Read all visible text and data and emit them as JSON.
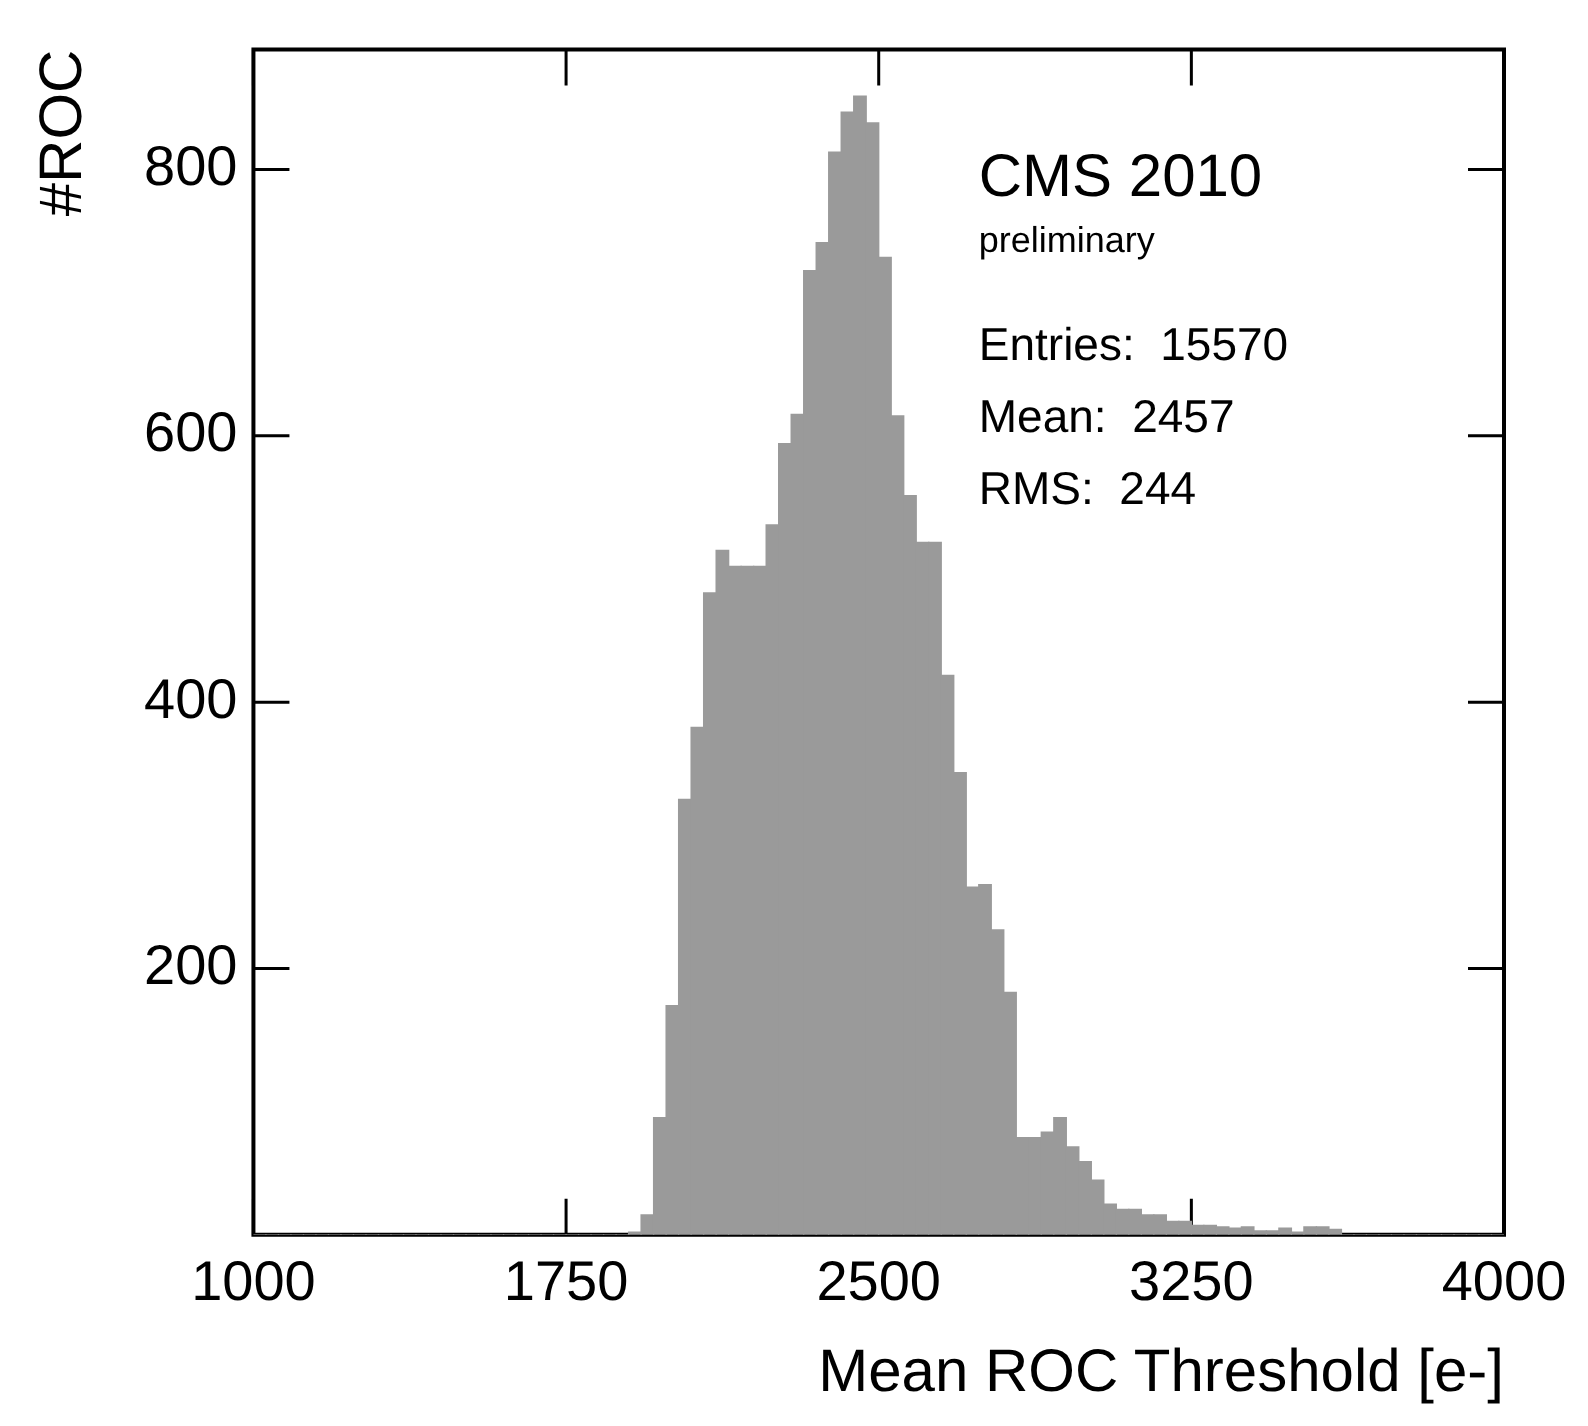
{
  "chart_data": {
    "type": "histogram",
    "xlabel": "Mean ROC Threshold [e-]",
    "ylabel": "#ROC",
    "bins": [
      1000,
      1030,
      1060,
      1090,
      1120,
      1150,
      1180,
      1210,
      1240,
      1270,
      1300,
      1330,
      1360,
      1390,
      1420,
      1450,
      1480,
      1510,
      1540,
      1570,
      1600,
      1630,
      1660,
      1690,
      1720,
      1750,
      1780,
      1810,
      1840,
      1870,
      1900,
      1930,
      1960,
      1990,
      2020,
      2050,
      2080,
      2110,
      2140,
      2170,
      2200,
      2230,
      2260,
      2290,
      2320,
      2350,
      2380,
      2410,
      2440,
      2470,
      2500,
      2530,
      2560,
      2590,
      2620,
      2650,
      2680,
      2710,
      2740,
      2770,
      2800,
      2830,
      2860,
      2890,
      2920,
      2950,
      2980,
      3010,
      3040,
      3070,
      3100,
      3130,
      3160,
      3190,
      3220,
      3250,
      3280,
      3310,
      3340,
      3370,
      3400,
      3430,
      3460,
      3490,
      3520,
      3550,
      3580,
      3610,
      3640,
      3670,
      3700,
      3730,
      3760,
      3790,
      3820,
      3850,
      3880,
      3910,
      3940,
      3970,
      4000
    ],
    "values": [
      0,
      0,
      0,
      0,
      0,
      0,
      0,
      0,
      0,
      0,
      0,
      0,
      0,
      0,
      0,
      0,
      0,
      0,
      0,
      0,
      0,
      0,
      0,
      0,
      0,
      0,
      0,
      0,
      0,
      0,
      2,
      15,
      88,
      172,
      327,
      381,
      482,
      514,
      502,
      502,
      502,
      533,
      594,
      616,
      724,
      745,
      813,
      843,
      855,
      835,
      734,
      615,
      555,
      520,
      520,
      420,
      347,
      261,
      263,
      229,
      182,
      73,
      73,
      77,
      88,
      66,
      55,
      41,
      23,
      19,
      19,
      15,
      15,
      10,
      10,
      7,
      7,
      6,
      5,
      6,
      3,
      3,
      5,
      2,
      6,
      6,
      4,
      0,
      0,
      0,
      0,
      0,
      0,
      0,
      0,
      0,
      0,
      0,
      0,
      0
    ],
    "color": "#9a9a9a",
    "xlim": [
      1000,
      4000
    ],
    "xticks": [
      1000,
      1750,
      2500,
      3250,
      4000
    ],
    "ylim": [
      0,
      890
    ],
    "yticks": [
      200,
      400,
      600,
      800
    ],
    "grid": false,
    "legend": false,
    "annotations": [
      "CMS 2010",
      "preliminary",
      "Entries:  15570",
      "Mean:  2457",
      "RMS:  244"
    ]
  }
}
